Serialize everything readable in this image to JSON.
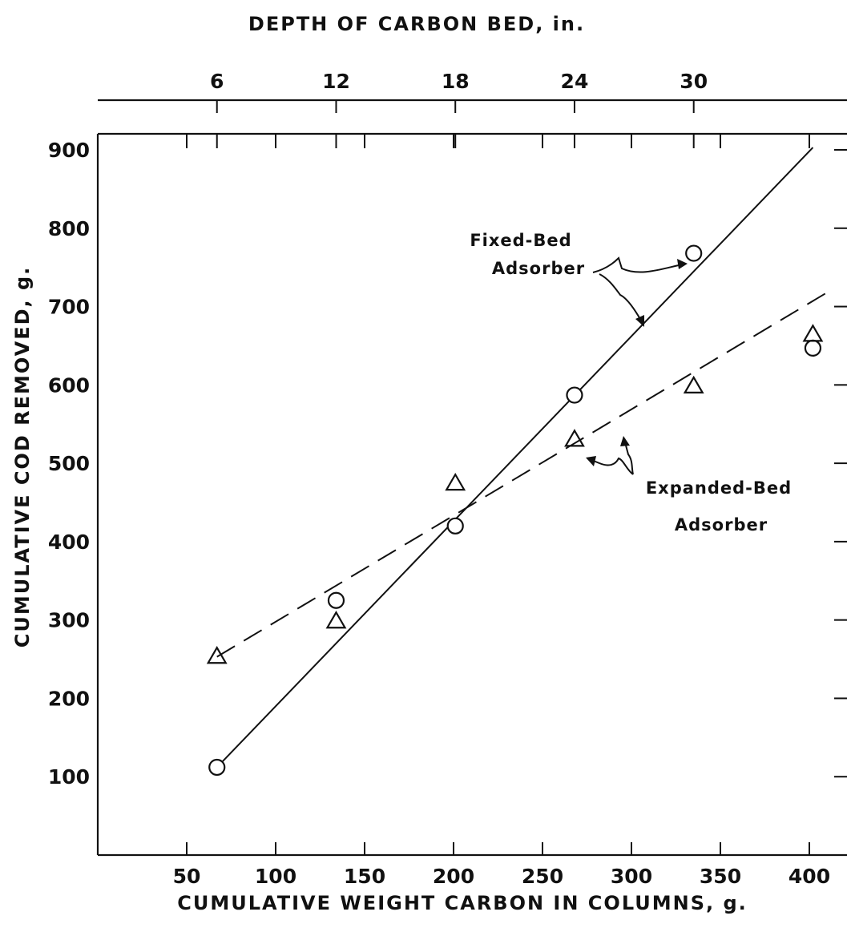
{
  "chart_data": {
    "type": "scatter",
    "title": "",
    "xlabel": "CUMULATIVE WEIGHT CARBON IN COLUMNS, g.",
    "ylabel": "CUMULATIVE COD REMOVED, g.",
    "x2label": "DEPTH OF CARBON BED, in.",
    "xlim": [
      0,
      410
    ],
    "ylim": [
      0,
      910
    ],
    "x_ticks": [
      50,
      100,
      150,
      200,
      250,
      300,
      350,
      400
    ],
    "y_ticks": [
      100,
      200,
      300,
      400,
      500,
      600,
      700,
      800,
      900
    ],
    "x2_ticks": [
      {
        "label": "6",
        "x": 67
      },
      {
        "label": "12",
        "x": 134
      },
      {
        "label": "18",
        "x": 201
      },
      {
        "label": "24",
        "x": 268
      },
      {
        "label": "30",
        "x": 335
      }
    ],
    "series": [
      {
        "name": "Fixed-Bed Adsorber",
        "marker": "circle",
        "line": "solid",
        "points": [
          {
            "x": 67,
            "y": 112
          },
          {
            "x": 134,
            "y": 325
          },
          {
            "x": 201,
            "y": 420
          },
          {
            "x": 268,
            "y": 587
          },
          {
            "x": 335,
            "y": 768
          },
          {
            "x": 402,
            "y": 647
          }
        ],
        "fit": [
          [
            67,
            112
          ],
          [
            402,
            903
          ]
        ]
      },
      {
        "name": "Expanded-Bed Adsorber",
        "marker": "triangle",
        "line": "dashed",
        "points": [
          {
            "x": 67,
            "y": 253
          },
          {
            "x": 134,
            "y": 298
          },
          {
            "x": 201,
            "y": 474
          },
          {
            "x": 268,
            "y": 530
          },
          {
            "x": 335,
            "y": 598
          },
          {
            "x": 402,
            "y": 664
          }
        ],
        "fit": [
          [
            67,
            253
          ],
          [
            410,
            718
          ]
        ]
      }
    ],
    "annotations": [
      {
        "lines": [
          "Fixed-Bed",
          "Adsorber"
        ]
      },
      {
        "lines": [
          "Expanded-Bed",
          "Adsorber"
        ]
      }
    ],
    "grid": false
  }
}
